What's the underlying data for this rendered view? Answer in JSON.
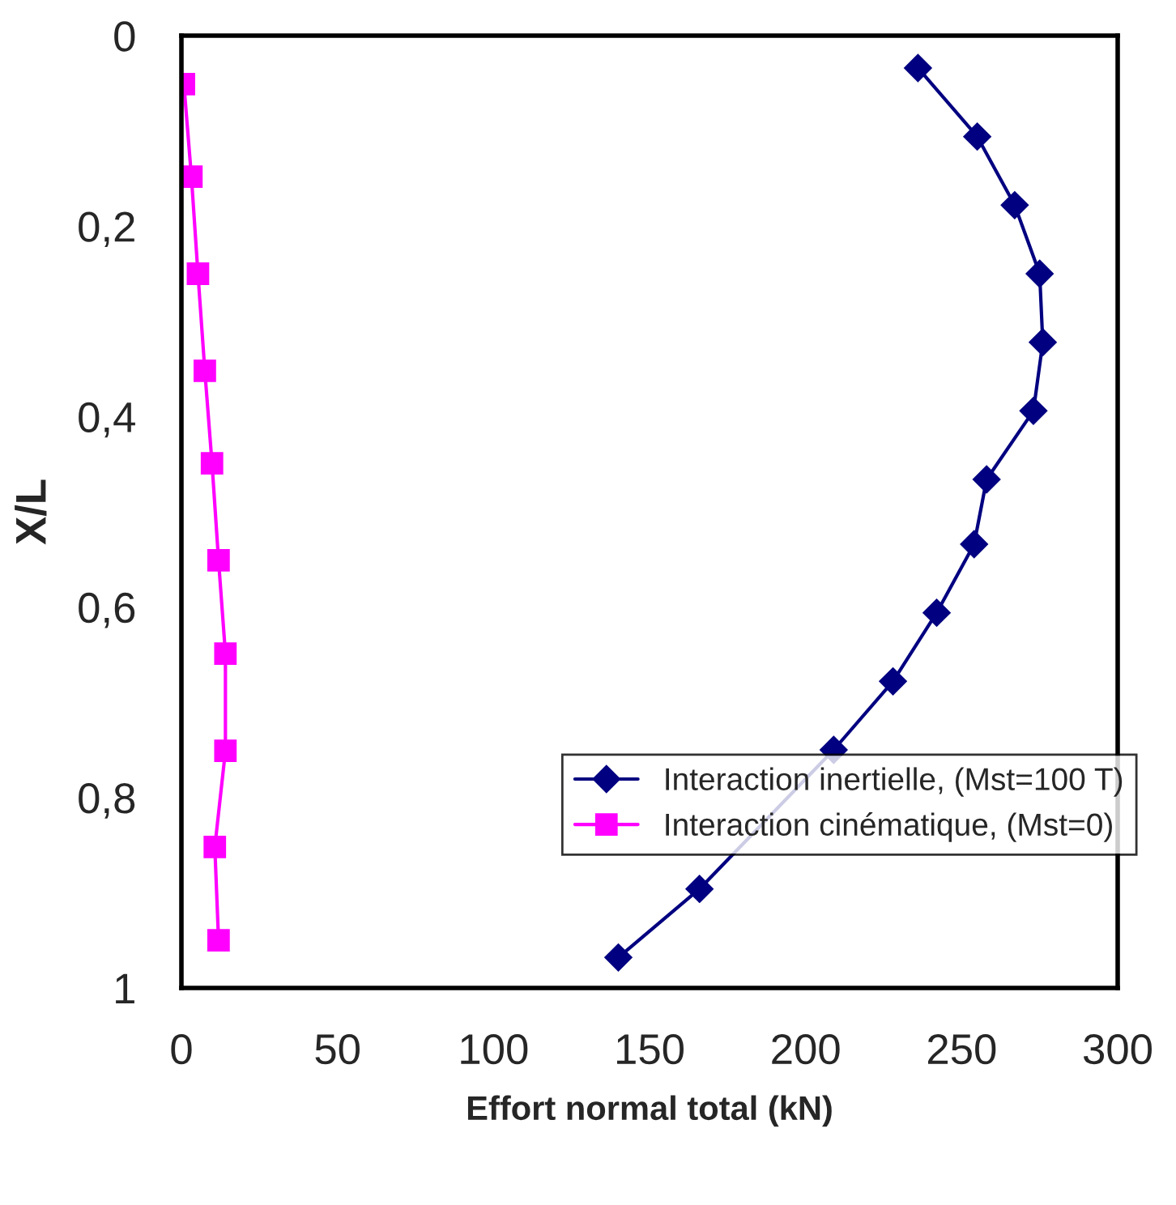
{
  "chart_data": {
    "type": "line",
    "xlabel": "Effort normal total (kN)",
    "ylabel": "X/L",
    "xlim": [
      0,
      300
    ],
    "xticks": [
      0,
      50,
      100,
      150,
      200,
      250,
      300
    ],
    "ylim": [
      1,
      0
    ],
    "yticks": [
      0,
      {
        "value": 0.2,
        "label": "0,2"
      },
      {
        "value": 0.4,
        "label": "0,4"
      },
      {
        "value": 0.6,
        "label": "0,6"
      },
      {
        "value": 0.8,
        "label": "0,8"
      },
      1
    ],
    "grid": false,
    "legend": "bottom right",
    "line_style": "solid",
    "series": [
      {
        "name": "Interaction inertielle, (Mst=100 T)",
        "color": "#000080",
        "marker": "diamond",
        "x": [
          236,
          255,
          267,
          275,
          276,
          273,
          258,
          254,
          242,
          228,
          209,
          166,
          140
        ],
        "values": [
          0.034,
          0.106,
          0.178,
          0.25,
          0.322,
          0.394,
          0.466,
          0.534,
          0.606,
          0.678,
          0.75,
          0.896,
          0.968
        ]
      },
      {
        "name": "Interaction cinématique, (Mst=0)",
        "color": "#ff00ff",
        "marker": "square",
        "x": [
          0.8,
          3.2,
          5.3,
          7.5,
          9.8,
          11.9,
          14.1,
          14.1,
          10.7,
          11.9
        ],
        "values": [
          0.051,
          0.148,
          0.25,
          0.352,
          0.449,
          0.551,
          0.649,
          0.751,
          0.852,
          0.95
        ]
      }
    ]
  }
}
